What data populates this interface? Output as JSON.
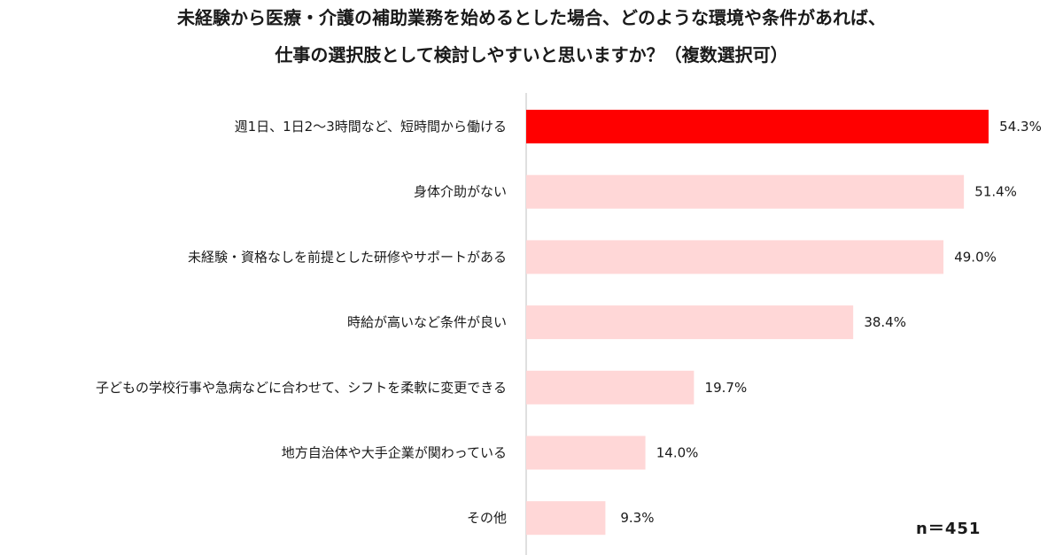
{
  "title": {
    "line1": "未経験から医療・介護の補助業務を始めるとした場合、どのような環境や条件があれば、",
    "line2": "仕事の選択肢として検討しやすいと思いますか？（複数選択可）"
  },
  "sample_size_label": "n＝451",
  "colors": {
    "highlight": "#ff0000",
    "bar": "#ffd7d7",
    "axis": "#bfbfbf"
  },
  "chart_data": {
    "type": "bar",
    "orientation": "horizontal",
    "categories": [
      "週1日、1日2～3時間など、短時間から働ける",
      "身体介助がない",
      "未経験・資格なしを前提とした研修やサポートがある",
      "時給が高いなど条件が良い",
      "子どもの学校行事や急病などに合わせて、シフトを柔軟に変更できる",
      "地方自治体や大手企業が関わっている",
      "その他"
    ],
    "values": [
      54.3,
      51.4,
      49.0,
      38.4,
      19.7,
      14.0,
      9.3
    ],
    "value_labels": [
      "54.3%",
      "51.4%",
      "49.0%",
      "38.4%",
      "19.7%",
      "14.0%",
      "9.3%"
    ],
    "highlighted_index": 0,
    "unit": "%",
    "xlim": [
      0,
      60
    ],
    "grid": false,
    "legend": "none"
  }
}
